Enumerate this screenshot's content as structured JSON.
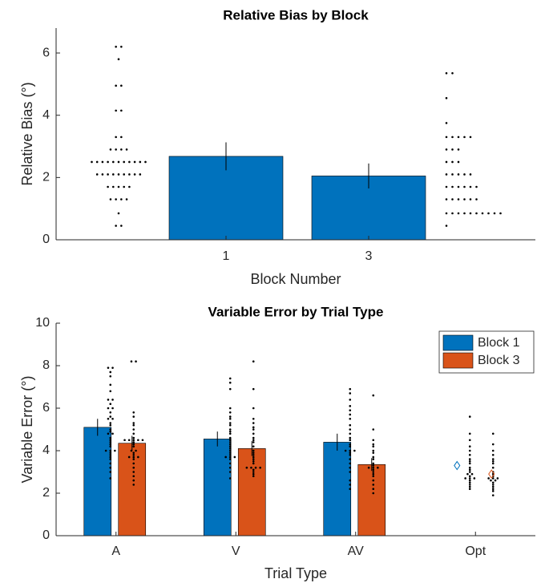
{
  "chart_data": [
    {
      "type": "bar",
      "title": "Relative Bias by Block",
      "xlabel": "Block Number",
      "ylabel": "Relative Bias (°)",
      "categories": [
        "1",
        "3"
      ],
      "values": [
        2.68,
        2.05
      ],
      "errors": [
        0.45,
        0.4
      ],
      "color": "#0072bd",
      "swarms": [
        [
          6.2,
          6.2,
          5.8,
          4.95,
          4.95,
          4.15,
          4.15,
          3.3,
          3.3,
          2.9,
          2.9,
          2.9,
          2.9,
          2.5,
          2.5,
          2.5,
          2.5,
          2.5,
          2.5,
          2.5,
          2.5,
          2.5,
          2.5,
          2.5,
          2.1,
          2.1,
          2.1,
          2.1,
          2.1,
          2.1,
          2.1,
          2.1,
          2.1,
          1.7,
          1.7,
          1.7,
          1.7,
          1.7,
          1.3,
          1.3,
          1.3,
          1.3,
          0.85,
          0.45,
          0.45
        ],
        [
          5.35,
          5.35,
          4.55,
          3.75,
          3.3,
          3.3,
          3.3,
          3.3,
          3.3,
          2.9,
          2.9,
          2.9,
          2.5,
          2.5,
          2.5,
          2.1,
          2.1,
          2.1,
          2.1,
          2.1,
          1.7,
          1.7,
          1.7,
          1.7,
          1.7,
          1.7,
          1.3,
          1.3,
          1.3,
          1.3,
          1.3,
          1.3,
          0.85,
          0.85,
          0.85,
          0.85,
          0.85,
          0.85,
          0.85,
          0.85,
          0.85,
          0.85,
          0.45
        ]
      ],
      "ylim": [
        0,
        6.8
      ],
      "yticks": [
        0,
        2,
        4,
        6
      ]
    },
    {
      "type": "grouped-bar",
      "title": "Variable Error by Trial Type",
      "xlabel": "Trial Type",
      "ylabel": "Variable Error (°)",
      "categories": [
        "A",
        "V",
        "AV",
        "Opt"
      ],
      "ylim": [
        0,
        10
      ],
      "yticks": [
        0,
        2,
        4,
        6,
        8,
        10
      ],
      "legend": "upper right",
      "series": [
        {
          "name": "Block 1",
          "color": "#0072bd",
          "values": [
            5.1,
            4.55,
            4.4,
            null
          ],
          "errors": [
            0.4,
            0.35,
            0.4,
            null
          ],
          "predicted": [
            null,
            null,
            null,
            3.3
          ],
          "swarms": [
            [
              7.9,
              7.9,
              7.7,
              7.5,
              7.1,
              6.8,
              6.4,
              6.4,
              6.2,
              6.0,
              6.0,
              5.8,
              5.6,
              5.5,
              5.5,
              5.3,
              5.2,
              5.0,
              4.9,
              4.8,
              4.8,
              4.6,
              4.5,
              4.4,
              4.3,
              4.2,
              4.0,
              4.0,
              4.0,
              3.9,
              3.8,
              3.7,
              3.6,
              3.4,
              3.2,
              3.0,
              2.7
            ],
            [
              7.4,
              7.2,
              6.9,
              6.0,
              5.8,
              5.6,
              5.5,
              5.3,
              5.2,
              5.0,
              4.9,
              4.8,
              4.6,
              4.5,
              4.4,
              4.3,
              4.2,
              4.1,
              4.0,
              3.9,
              3.8,
              3.7,
              3.7,
              3.7,
              3.6,
              3.4,
              3.2,
              3.0,
              2.7
            ],
            [
              6.9,
              6.7,
              6.4,
              6.1,
              5.9,
              5.7,
              5.5,
              5.2,
              5.0,
              4.8,
              4.6,
              4.5,
              4.3,
              4.2,
              4.0,
              4.0,
              4.0,
              3.9,
              3.8,
              3.6,
              3.4,
              3.2,
              3.0,
              2.6,
              2.4,
              2.2
            ],
            [
              5.6,
              4.8,
              4.5,
              4.2,
              4.0,
              3.8,
              3.6,
              3.5,
              3.4,
              3.2,
              3.1,
              3.0,
              2.9,
              2.9,
              2.8,
              2.7,
              2.7,
              2.7,
              2.6,
              2.5,
              2.4,
              2.3,
              2.2
            ]
          ]
        },
        {
          "name": "Block 3",
          "color": "#d95319",
          "values": [
            4.35,
            4.1,
            3.35,
            null
          ],
          "errors": [
            0.35,
            0.35,
            0.3,
            null
          ],
          "predicted": [
            null,
            null,
            null,
            2.9
          ],
          "swarms": [
            [
              8.2,
              8.2,
              5.8,
              5.6,
              5.3,
              5.2,
              5.0,
              4.8,
              4.6,
              4.5,
              4.5,
              4.5,
              4.5,
              4.5,
              4.4,
              4.3,
              4.2,
              4.0,
              4.0,
              3.9,
              3.8,
              3.7,
              3.7,
              3.7,
              3.6,
              3.4,
              3.2,
              3.0,
              2.8,
              2.6,
              2.4
            ],
            [
              8.2,
              6.9,
              6.0,
              5.5,
              5.3,
              5.1,
              5.0,
              4.8,
              4.6,
              4.5,
              4.4,
              4.2,
              4.0,
              3.9,
              3.8,
              3.7,
              3.6,
              3.5,
              3.4,
              3.2,
              3.2,
              3.2,
              3.2,
              3.1,
              3.0,
              2.9,
              2.8
            ],
            [
              6.6,
              5.0,
              4.5,
              4.3,
              4.2,
              4.0,
              3.9,
              3.7,
              3.6,
              3.4,
              3.3,
              3.2,
              3.2,
              3.2,
              3.1,
              3.0,
              2.9,
              2.8,
              2.6,
              2.4,
              2.2,
              2.0
            ],
            [
              4.8,
              4.3,
              4.0,
              3.8,
              3.6,
              3.5,
              3.4,
              3.2,
              3.0,
              2.9,
              2.8,
              2.7,
              2.7,
              2.7,
              2.6,
              2.6,
              2.5,
              2.4,
              2.3,
              2.2,
              2.1,
              1.9
            ]
          ]
        }
      ]
    }
  ]
}
